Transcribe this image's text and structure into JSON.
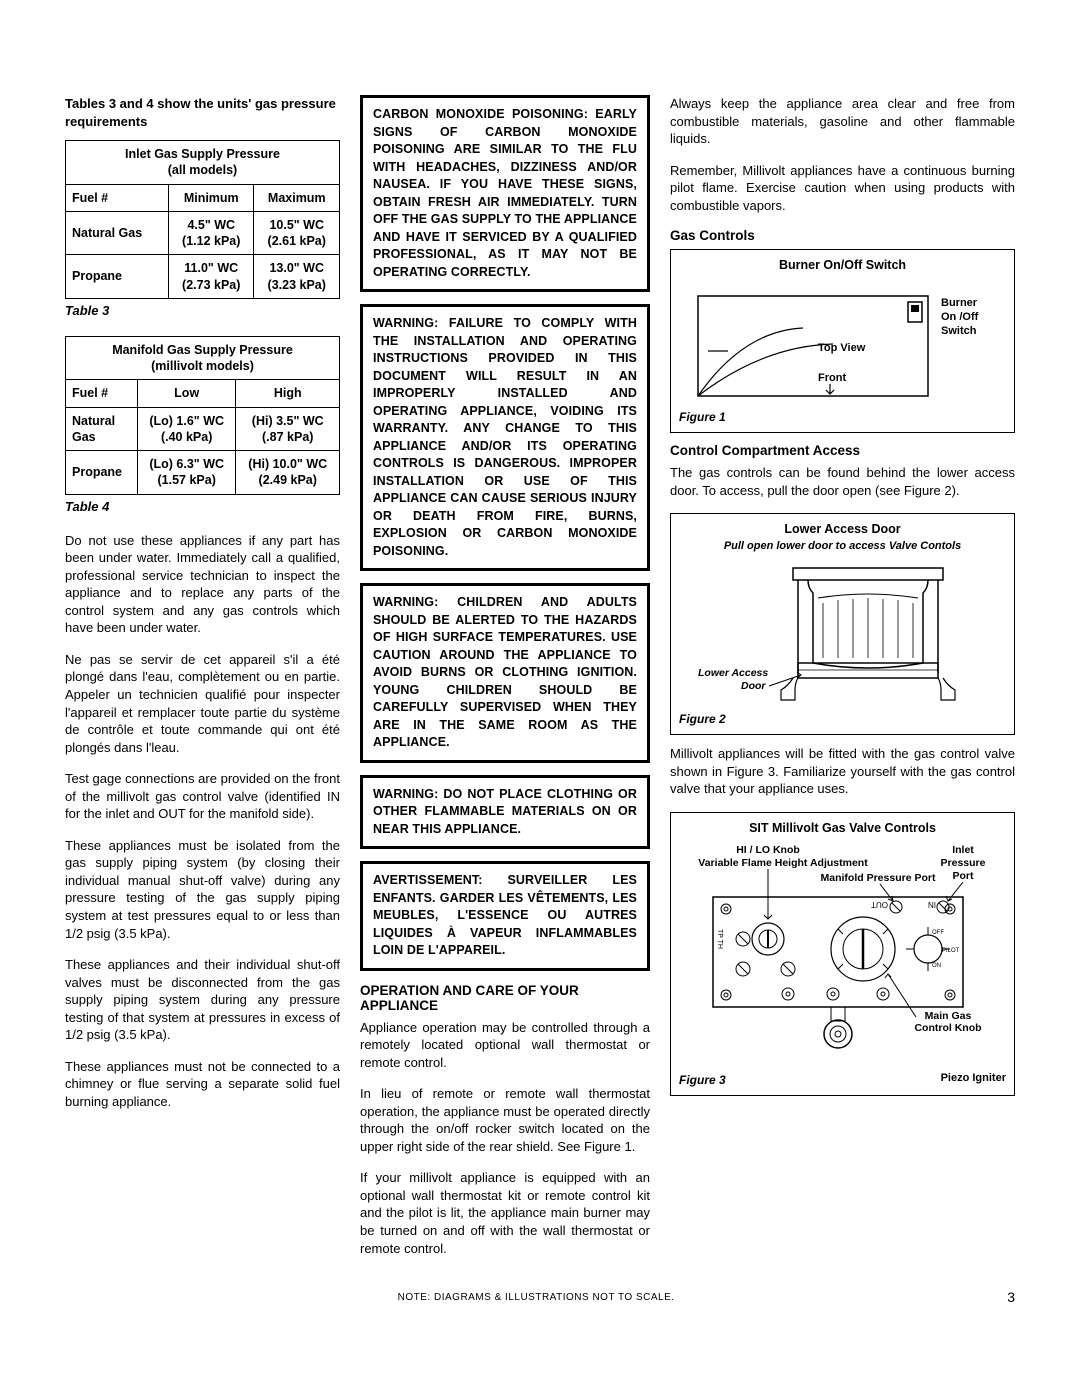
{
  "intro": "Tables 3 and 4 show the units' gas pressure requirements",
  "table3": {
    "title_l1": "Inlet Gas Supply Pressure",
    "title_l2": "(all models)",
    "h1": "Fuel #",
    "h2": "Minimum",
    "h3": "Maximum",
    "r1c1": "Natural Gas",
    "r1c2": "4.5\" WC\n(1.12 kPa)",
    "r1c3": "10.5\" WC\n(2.61 kPa)",
    "r2c1": "Propane",
    "r2c2": "11.0\" WC\n(2.73 kPa)",
    "r2c3": "13.0\" WC\n(3.23 kPa)",
    "caption": "Table 3"
  },
  "table4": {
    "title_l1": "Manifold Gas Supply Pressure",
    "title_l2": "(millivolt models)",
    "h1": "Fuel #",
    "h2": "Low",
    "h3": "High",
    "r1c1": "Natural\nGas",
    "r1c2": "(Lo) 1.6\" WC\n(.40 kPa)",
    "r1c3": "(Hi) 3.5\" WC\n(.87 kPa)",
    "r2c1": "Propane",
    "r2c2": "(Lo) 6.3\" WC\n(1.57 kPa)",
    "r2c3": "(Hi) 10.0\" WC\n(2.49 kPa)",
    "caption": "Table 4"
  },
  "col1": {
    "p1": "Do not use these appliances if any part has been under water. Immediately call a qualified, professional service technician to inspect the appliance and to replace any parts of the control system and any gas controls which have been under water.",
    "p2": "Ne pas se servir de cet appareil s'il a été plongé dans l'eau, complètement ou en partie.  Appeler un technicien qualifié pour inspecter l'appareil et remplacer toute partie du système de contrôle et toute commande qui ont été plongés dans l'leau.",
    "p3": "Test gage connections are provided on the front of the millivolt gas control valve (identified IN for the inlet and OUT for the manifold side).",
    "p4": "These appliances must be isolated from the gas supply piping system (by closing their individual manual shut-off valve) during any pressure testing of the gas supply piping system at test pressures equal to or less than 1/2 psig (3.5 kPa).",
    "p5": "These appliances and their individual shut-off valves must be disconnected from the gas supply piping system during any pressure testing of that system at pressures in excess of 1/2 psig (3.5 kPa).",
    "p6": "These appliances must not be connected to a chimney or flue serving a separate solid fuel burning appliance."
  },
  "warnings": {
    "w1": "CARBON MONOXIDE POISONING: EARLY SIGNS OF CARBON MONOXIDE POISONING ARE SIMILAR TO THE FLU WITH HEADACHES, DIZZINESS AND/OR NAUSEA. IF YOU HAVE THESE SIGNS, OBTAIN FRESH AIR IMMEDIATELY. TURN OFF THE GAS SUPPLY TO THE APPLIANCE AND HAVE IT SERVICED BY A QUALIFIED PROFESSIONAL, AS IT MAY NOT BE OPERATING CORRECTLY.",
    "w2": "WARNING: FAILURE TO COMPLY WITH THE INSTALLATION AND OPERATING INSTRUCTIONS PROVIDED IN THIS DOCUMENT WILL RESULT IN AN IMPROPERLY INSTALLED AND OPERATING APPLIANCE, VOIDING ITS WARRANTY.  ANY CHANGE TO THIS APPLIANCE AND/OR ITS OPERATING CONTROLS IS DANGEROUS.  IMPROPER INSTALLATION OR USE OF THIS APPLIANCE CAN CAUSE SERIOUS INJURY OR DEATH FROM FIRE, BURNS, EXPLOSION OR CARBON MONOXIDE POISONING.",
    "w3": "WARNING: CHILDREN AND ADULTS SHOULD BE ALERTED TO THE HAZARDS OF HIGH SURFACE TEMPERATURES. USE CAUTION AROUND THE APPLIANCE TO AVOID BURNS OR CLOTHING IGNITION. YOUNG CHILDREN SHOULD BE CAREFULLY SUPERVISED WHEN THEY ARE IN THE SAME ROOM AS THE APPLIANCE.",
    "w4": "WARNING:  DO NOT PLACE CLOTHING OR OTHER FLAMMABLE MATERIALS ON OR NEAR THIS APPLIANCE.",
    "w5": "AVERTISSEMENT: SURVEILLER LES ENFANTS.  GARDER LES VÊTEMENTS, LES MEUBLES, L'ESSENCE OU AUTRES LIQUIDES À  VAPEUR INFLAMMABLES LOIN DE L'APPAREIL."
  },
  "col2": {
    "heading": "OPERATION AND CARE OF YOUR APPLIANCE",
    "p1": "Appliance operation may be controlled through a remotely located optional wall thermostat or remote control.",
    "p2": "In lieu of remote or remote wall thermostat operation, the appliance must be operated directly through the on/off rocker switch located on the upper right side of the rear shield. See Figure 1.",
    "p3": "If your millivolt appliance is equipped with an optional wall thermostat kit or remote control kit and the pilot is lit, the appliance main burner may be turned on and off with the wall thermostat or remote control."
  },
  "col3": {
    "p1": "Always keep the appliance area clear and free from combustible materials, gasoline and other flammable liquids.",
    "p2": "Remember, Millivolt appliances have a continuous burning pilot flame. Exercise caution when using products with combustible vapors.",
    "gas_controls": "Gas Controls",
    "fig1_title": "Burner On/Off Switch",
    "fig1_label1": "Burner\nOn /Off\nSwitch",
    "fig1_topview": "Top View",
    "fig1_front": "Front",
    "fig1_caption": "Figure 1",
    "cca_heading": "Control Compartment Access",
    "cca_text": "The gas controls can be found behind the lower access door. To  access, pull the door open (see Figure 2).",
    "fig2_title": "Lower Access Door",
    "fig2_sub": "Pull open lower door to access Valve Contols",
    "fig2_label": "Lower Access\nDoor",
    "fig2_caption": "Figure 2",
    "mv_text": "Millivolt appliances will be fitted with the gas control valve shown in Figure 3.  Familiarize yourself with the gas control valve that your appliance uses.",
    "fig3_title": "SIT Millivolt Gas Valve Controls",
    "fig3_hilo": "HI / LO Knob\nVariable Flame Height Adjustment",
    "fig3_inlet": "Inlet\nPressure\nPort",
    "fig3_manifold": "Manifold Pressure Port",
    "fig3_main": "Main Gas\nControl Knob",
    "fig3_piezo": "Piezo Igniter",
    "fig3_caption": "Figure 3"
  },
  "footer": {
    "note": "NOTE: DIAGRAMS & ILLUSTRATIONS NOT TO SCALE.",
    "page": "3"
  }
}
